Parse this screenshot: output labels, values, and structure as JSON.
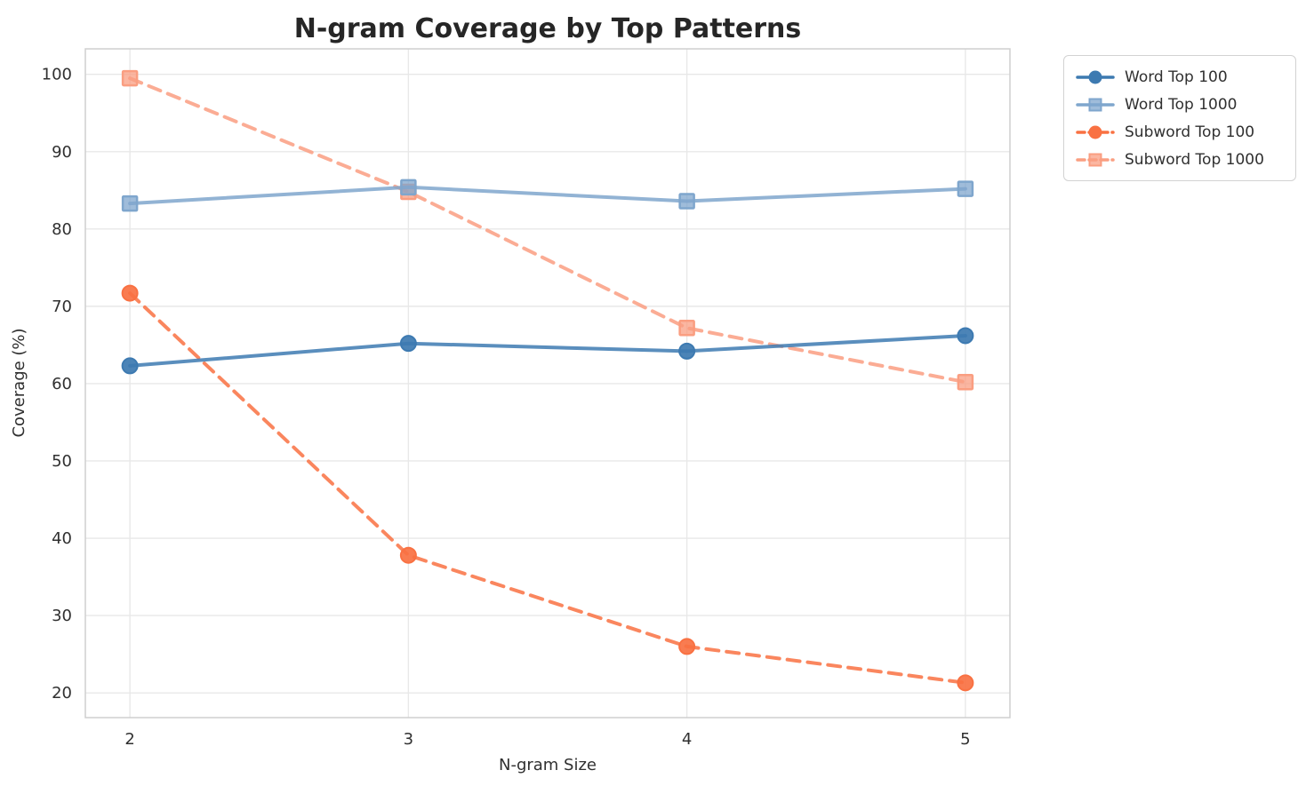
{
  "figure": {
    "background": "#ffffff",
    "plot_border_color": "#cfcfcf",
    "grid_color": "#e8e8e8",
    "tick_color": "#303030",
    "title_color": "#262626"
  },
  "chart_data": {
    "type": "line",
    "title": "N-gram Coverage by Top Patterns",
    "xlabel": "N-gram Size",
    "ylabel": "Coverage (%)",
    "x": [
      2,
      3,
      4,
      5
    ],
    "xticks": [
      "2",
      "3",
      "4",
      "5"
    ],
    "yticks": [
      20,
      30,
      40,
      50,
      60,
      70,
      80,
      90,
      100
    ],
    "xlim": [
      1.84,
      5.16
    ],
    "ylim": [
      16.8,
      103.3
    ],
    "grid": true,
    "legend_position": "outside-upper-right",
    "series": [
      {
        "name": "Word Top 100",
        "values": [
          62.3,
          65.2,
          64.2,
          66.2
        ],
        "color": "#3d7ab1",
        "linestyle": "solid",
        "marker": "circle"
      },
      {
        "name": "Word Top 1000",
        "values": [
          83.3,
          85.4,
          83.6,
          85.2
        ],
        "color": "#7fa6cd",
        "linestyle": "solid",
        "marker": "square"
      },
      {
        "name": "Subword Top 100",
        "values": [
          71.7,
          37.8,
          26.0,
          21.3
        ],
        "color": "#f97142",
        "linestyle": "dashed",
        "marker": "circle"
      },
      {
        "name": "Subword Top 1000",
        "values": [
          99.5,
          84.8,
          67.2,
          60.2
        ],
        "color": "#fa9e81",
        "linestyle": "dashed",
        "marker": "square"
      }
    ]
  }
}
